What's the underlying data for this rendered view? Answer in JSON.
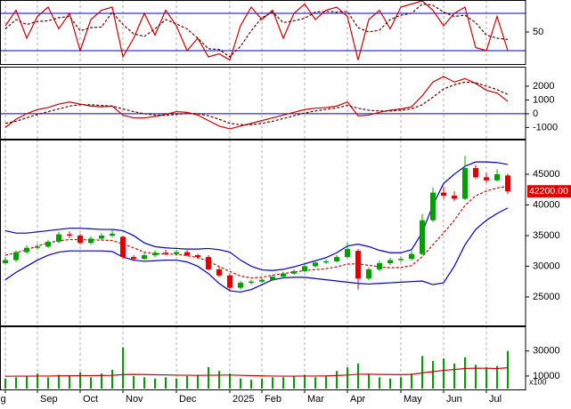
{
  "chart_data": [
    {
      "type": "line",
      "ylim": [
        0,
        100
      ],
      "yticks": [
        50
      ],
      "levels": [
        20,
        80
      ],
      "level_color": "#0000c0",
      "series": [
        {
          "color": "#d00000",
          "dash": false,
          "values": [
            60,
            85,
            40,
            75,
            90,
            55,
            80,
            20,
            70,
            85,
            90,
            10,
            40,
            80,
            45,
            85,
            60,
            20,
            40,
            10,
            15,
            5,
            60,
            90,
            70,
            85,
            40,
            80,
            95,
            70,
            85,
            90,
            75,
            5,
            70,
            85,
            55,
            90,
            95,
            100,
            85,
            60,
            80,
            90,
            25,
            20,
            75,
            20
          ]
        },
        {
          "color": "#600000",
          "dash": true,
          "values": [
            55,
            70,
            62,
            67,
            68,
            73,
            75,
            52,
            57,
            58,
            82,
            62,
            47,
            43,
            55,
            70,
            63,
            55,
            40,
            23,
            22,
            10,
            27,
            52,
            73,
            82,
            65,
            68,
            72,
            82,
            83,
            82,
            83,
            57,
            50,
            53,
            70,
            77,
            80,
            95,
            93,
            82,
            75,
            77,
            65,
            45,
            40,
            38
          ]
        }
      ]
    },
    {
      "type": "line",
      "ylim": [
        -1750,
        3350
      ],
      "yticks": [
        -1000,
        0,
        1000,
        2000
      ],
      "levels": [
        0
      ],
      "level_color": "#0000c0",
      "series": [
        {
          "color": "#d00000",
          "dash": false,
          "values": [
            -1000,
            -400,
            0,
            300,
            450,
            700,
            850,
            700,
            550,
            500,
            550,
            -100,
            -300,
            -300,
            -200,
            -50,
            150,
            100,
            -100,
            -500,
            -900,
            -1100,
            -900,
            -700,
            -500,
            -300,
            -100,
            100,
            300,
            400,
            450,
            550,
            850,
            -150,
            -100,
            100,
            250,
            350,
            500,
            1300,
            2300,
            2700,
            2300,
            2550,
            2200,
            1700,
            1500,
            900
          ]
        },
        {
          "color": "#600000",
          "dash": true,
          "values": [
            -700,
            -550,
            -300,
            -50,
            150,
            350,
            550,
            650,
            650,
            600,
            560,
            350,
            150,
            0,
            -100,
            -120,
            -50,
            20,
            0,
            -150,
            -400,
            -700,
            -800,
            -800,
            -700,
            -550,
            -350,
            -150,
            50,
            200,
            320,
            420,
            600,
            400,
            250,
            200,
            200,
            250,
            350,
            650,
            1200,
            1800,
            2100,
            2300,
            2250,
            2000,
            1750,
            1400
          ]
        }
      ]
    },
    {
      "type": "candlestick",
      "ylim": [
        20500,
        50500
      ],
      "yticks": [
        25000,
        30000,
        35000,
        40000,
        45000
      ],
      "up_color": "#00a000",
      "down_color": "#e00000",
      "open": [
        30500,
        31000,
        32300,
        33000,
        33200,
        34000,
        35200,
        35000,
        33800,
        34500,
        35000,
        34800,
        31500,
        31200,
        31800,
        32200,
        32000,
        32300,
        31800,
        31500,
        29500,
        28500,
        26500,
        27300,
        27500,
        27800,
        28300,
        28800,
        29200,
        30000,
        30600,
        30800,
        31500,
        32500,
        28000,
        29500,
        30500,
        31000,
        31200,
        32000,
        37500,
        42000,
        41500,
        41000,
        46000,
        44500,
        44000,
        44800
      ],
      "high": [
        31500,
        32600,
        33400,
        33600,
        34300,
        35600,
        35700,
        35300,
        34900,
        35400,
        36000,
        35000,
        31800,
        32200,
        32600,
        32700,
        32700,
        32600,
        32000,
        31800,
        29900,
        28800,
        27600,
        27800,
        28100,
        28600,
        29100,
        29500,
        30400,
        31000,
        31100,
        31800,
        33800,
        32800,
        29800,
        30900,
        31400,
        31600,
        32500,
        38500,
        42800,
        43000,
        42200,
        48000,
        46500,
        45200,
        45800,
        45100
      ],
      "low": [
        30200,
        30700,
        32000,
        32700,
        33000,
        33700,
        34600,
        33500,
        33500,
        34200,
        34700,
        31200,
        30800,
        31000,
        31500,
        31800,
        31700,
        31600,
        31200,
        29300,
        28200,
        25900,
        26200,
        27000,
        27300,
        27600,
        28100,
        28600,
        29000,
        29800,
        30400,
        30600,
        31300,
        26200,
        27700,
        29200,
        30200,
        30700,
        30900,
        31800,
        37200,
        41000,
        40600,
        40800,
        44200,
        43600,
        43800,
        41800
      ],
      "close": [
        31000,
        32300,
        33000,
        33200,
        34000,
        35200,
        35000,
        33800,
        34500,
        35000,
        35300,
        31500,
        31200,
        31800,
        32200,
        32000,
        32300,
        31800,
        31500,
        29500,
        28500,
        26500,
        27300,
        27500,
        27800,
        28300,
        28800,
        29200,
        30000,
        30600,
        30800,
        31500,
        32800,
        28000,
        29500,
        30500,
        31000,
        31200,
        32000,
        37500,
        42000,
        41500,
        41000,
        46000,
        44500,
        44000,
        45000,
        42200
      ],
      "last_price": {
        "value": 42200,
        "label": "42200.00"
      },
      "last_color": "#e00000",
      "series": [
        {
          "color": "#0000c0",
          "dash": false,
          "values": [
            35800,
            35400,
            35400,
            35600,
            35800,
            36000,
            36200,
            36200,
            36100,
            36000,
            36000,
            35800,
            35000,
            33800,
            33200,
            33000,
            32900,
            32800,
            32800,
            32900,
            32700,
            32300,
            31000,
            30000,
            29400,
            29300,
            29500,
            29900,
            30400,
            30900,
            31400,
            32200,
            33300,
            33600,
            33200,
            32600,
            32200,
            32200,
            32700,
            35500,
            40000,
            43500,
            45000,
            46300,
            47000,
            47000,
            46900,
            46600
          ]
        },
        {
          "color": "#d00000",
          "dash": true,
          "values": [
            31800,
            32200,
            32700,
            33300,
            33800,
            34150,
            34350,
            34350,
            34300,
            34250,
            34200,
            33650,
            33000,
            32300,
            32050,
            32000,
            31950,
            31750,
            31400,
            30850,
            29950,
            29150,
            28400,
            28100,
            28200,
            28550,
            28800,
            29050,
            29300,
            29450,
            29600,
            29900,
            30350,
            30400,
            30150,
            29900,
            29750,
            29800,
            30100,
            31550,
            33500,
            35400,
            37500,
            39900,
            41500,
            42250,
            42750,
            43050
          ]
        },
        {
          "color": "#0000c0",
          "dash": false,
          "values": [
            27800,
            29000,
            30000,
            31000,
            31800,
            32300,
            32500,
            32500,
            32500,
            32500,
            32400,
            31500,
            31000,
            30800,
            30900,
            31000,
            31000,
            30700,
            30000,
            28800,
            27200,
            26000,
            25800,
            26200,
            27000,
            27800,
            28100,
            28200,
            28200,
            28000,
            27800,
            27600,
            27400,
            27200,
            27100,
            27200,
            27300,
            27400,
            27500,
            27600,
            27000,
            27300,
            30000,
            33500,
            36000,
            37500,
            38600,
            39500
          ]
        }
      ]
    },
    {
      "type": "bar",
      "ylim": [
        0,
        49000
      ],
      "yticks": [
        10000,
        30000
      ],
      "unit_label": "x100",
      "color": "#00a000",
      "categories": [
        "Aug",
        null,
        null,
        "Sep",
        null,
        null,
        null,
        "Oct",
        null,
        null,
        null,
        "Nov",
        null,
        null,
        null,
        null,
        "Dec",
        null,
        null,
        null,
        null,
        "2025",
        null,
        null,
        "Feb",
        null,
        null,
        null,
        "Mar",
        null,
        null,
        null,
        "Apr",
        null,
        null,
        null,
        null,
        "May",
        null,
        null,
        null,
        "Jun",
        null,
        null,
        null,
        "Jul",
        null,
        null
      ],
      "values": [
        8000,
        9000,
        10000,
        12000,
        9000,
        11000,
        10000,
        13000,
        9000,
        12000,
        15000,
        33000,
        10000,
        9000,
        8000,
        9000,
        8000,
        10000,
        11000,
        17000,
        14000,
        12000,
        8000,
        7000,
        8000,
        9000,
        9000,
        10000,
        11000,
        9000,
        10000,
        14000,
        17000,
        20000,
        11000,
        9000,
        8000,
        9000,
        12000,
        26000,
        22000,
        24000,
        20000,
        25000,
        19000,
        17000,
        18000,
        30000
      ],
      "series": [
        {
          "color": "#d00000",
          "dash": false,
          "values": [
            9800,
            9900,
            9900,
            10000,
            10000,
            10100,
            10200,
            10300,
            10300,
            10400,
            10500,
            11200,
            11300,
            11200,
            11000,
            10900,
            10700,
            10600,
            10500,
            10600,
            10700,
            10800,
            10600,
            10300,
            10100,
            10000,
            9900,
            9900,
            10000,
            10000,
            10100,
            10400,
            10800,
            11400,
            11500,
            11300,
            11200,
            11100,
            11300,
            12500,
            13500,
            14500,
            15200,
            16000,
            16300,
            16200,
            16000,
            16600
          ]
        }
      ]
    }
  ]
}
